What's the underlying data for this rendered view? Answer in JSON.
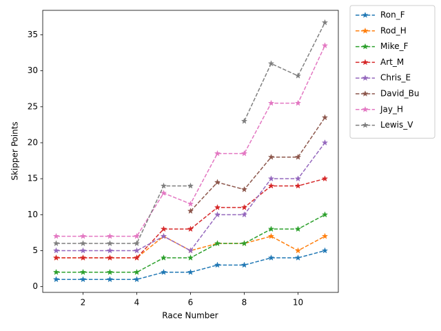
{
  "chart_data": {
    "type": "line",
    "xlabel": "Race Number",
    "ylabel": "Skipper Points",
    "x": [
      1,
      2,
      3,
      4,
      5,
      6,
      7,
      8,
      9,
      10,
      11
    ],
    "xlim": [
      0.5,
      11.5
    ],
    "xticks": [
      2,
      4,
      6,
      8,
      10
    ],
    "ylim": [
      -0.8,
      38.4
    ],
    "yticks": [
      0,
      5,
      10,
      15,
      20,
      25,
      30,
      35
    ],
    "line_style": "dashed",
    "marker": "star",
    "legend": "outside upper right",
    "series": [
      {
        "name": "Ron_F",
        "color": "#1f77b4",
        "values": [
          1,
          1,
          1,
          1,
          2,
          2,
          3,
          3,
          4,
          4,
          5
        ]
      },
      {
        "name": "Rod_H",
        "color": "#ff7f0e",
        "values": [
          4,
          4,
          4,
          4,
          7,
          5,
          6,
          6,
          7,
          5,
          7
        ]
      },
      {
        "name": "Mike_F",
        "color": "#2ca02c",
        "values": [
          2,
          2,
          2,
          2,
          4,
          4,
          6,
          6,
          8,
          8,
          10
        ]
      },
      {
        "name": "Art_M",
        "color": "#d62728",
        "values": [
          4,
          4,
          4,
          4,
          8,
          8,
          11,
          11,
          14,
          14,
          15
        ]
      },
      {
        "name": "Chris_E",
        "color": "#9467bd",
        "values": [
          5,
          5,
          5,
          5,
          7,
          5,
          10,
          10,
          15,
          15,
          20
        ]
      },
      {
        "name": "David_Bu",
        "color": "#8c564b",
        "values": [
          null,
          null,
          null,
          null,
          null,
          10.5,
          14.5,
          13.5,
          18,
          18,
          23.5
        ]
      },
      {
        "name": "Jay_H",
        "color": "#e377c2",
        "values": [
          7,
          7,
          7,
          7,
          13,
          11.5,
          18.5,
          18.5,
          25.5,
          25.5,
          33.5
        ]
      },
      {
        "name": "Lewis_V",
        "color": "#7f7f7f",
        "values": [
          6,
          6,
          6,
          6,
          14,
          14,
          null,
          23,
          31,
          29.3,
          36.7
        ]
      }
    ]
  }
}
